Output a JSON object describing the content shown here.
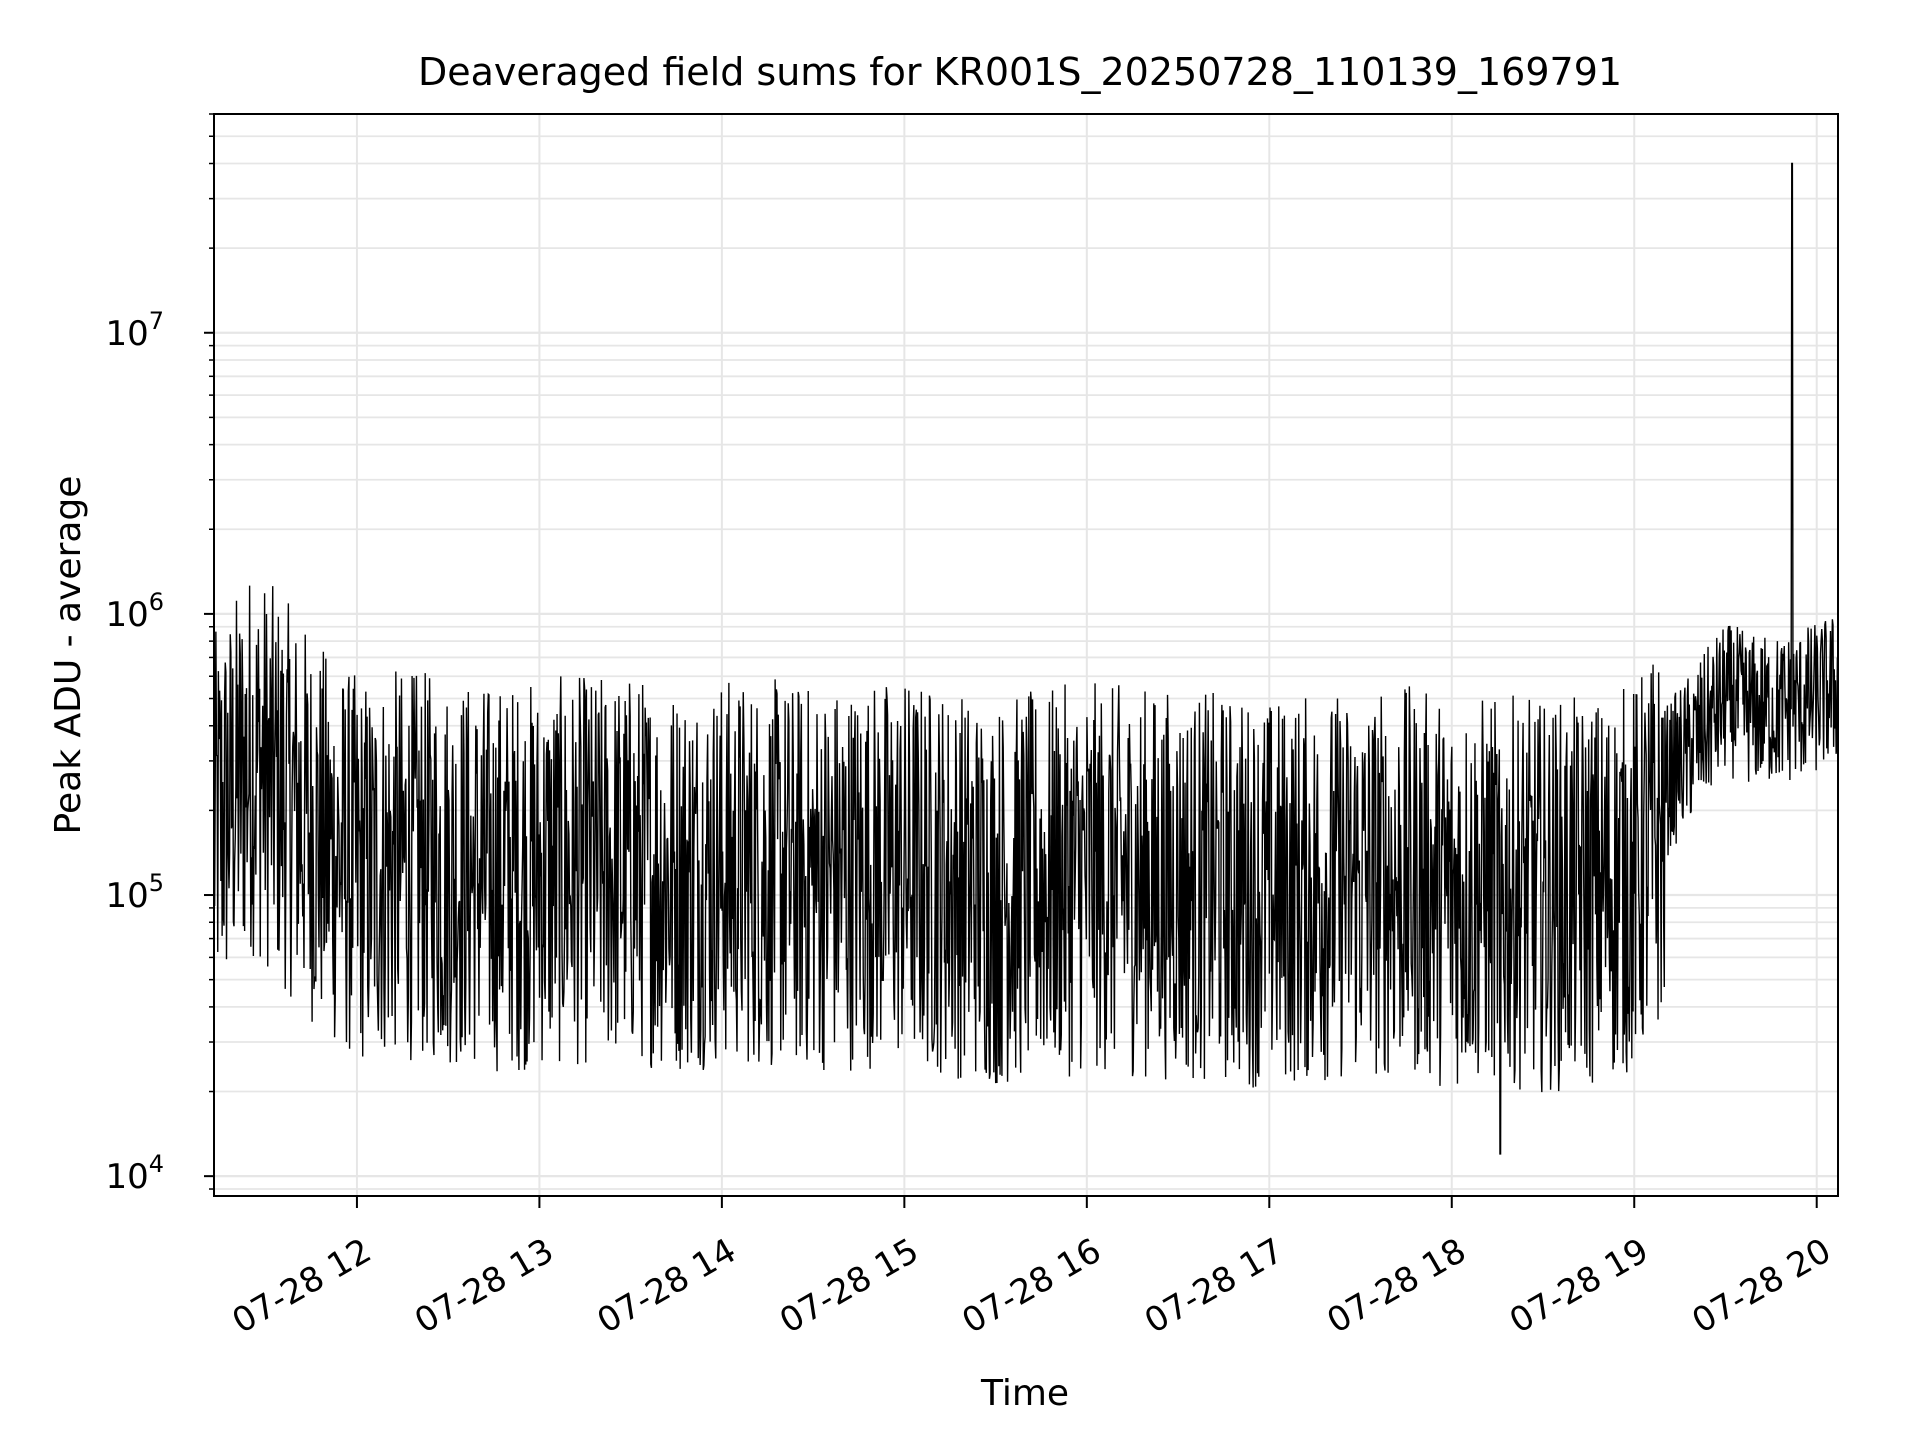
{
  "chart_data": {
    "type": "line",
    "title": "Deaveraged field sums for KR001S_20250728_110139_169791",
    "xlabel": "Time",
    "ylabel": "Peak ADU - average",
    "y_scale": "log",
    "ylim": [
      8500,
      60000000
    ],
    "xlim": [
      "2025-07-28 11:13",
      "2025-07-28 20:07"
    ],
    "grid": true,
    "line_color": "#000000",
    "grid_color": "#e6e6e6",
    "x_ticks": [
      {
        "value": "2025-07-28 12:00",
        "label": "07-28 12"
      },
      {
        "value": "2025-07-28 13:00",
        "label": "07-28 13"
      },
      {
        "value": "2025-07-28 14:00",
        "label": "07-28 14"
      },
      {
        "value": "2025-07-28 15:00",
        "label": "07-28 15"
      },
      {
        "value": "2025-07-28 16:00",
        "label": "07-28 16"
      },
      {
        "value": "2025-07-28 17:00",
        "label": "07-28 17"
      },
      {
        "value": "2025-07-28 18:00",
        "label": "07-28 18"
      },
      {
        "value": "2025-07-28 19:00",
        "label": "07-28 19"
      },
      {
        "value": "2025-07-28 20:00",
        "label": "07-28 20"
      }
    ],
    "y_ticks": [
      {
        "value": 10000,
        "base": "10",
        "exp": "4"
      },
      {
        "value": 100000,
        "base": "10",
        "exp": "5"
      },
      {
        "value": 1000000,
        "base": "10",
        "exp": "6"
      },
      {
        "value": 10000000,
        "base": "10",
        "exp": "7"
      }
    ],
    "series": [
      {
        "x": [
          "2025-07-28 11:13",
          "2025-07-28 11:20",
          "2025-07-28 11:25",
          "2025-07-28 11:30",
          "2025-07-28 11:40",
          "2025-07-28 11:50",
          "2025-07-28 12:00",
          "2025-07-28 12:15",
          "2025-07-28 12:30",
          "2025-07-28 12:45",
          "2025-07-28 13:00",
          "2025-07-28 13:15",
          "2025-07-28 13:30",
          "2025-07-28 13:45",
          "2025-07-28 14:00",
          "2025-07-28 14:15",
          "2025-07-28 14:30",
          "2025-07-28 14:45",
          "2025-07-28 15:00",
          "2025-07-28 15:15",
          "2025-07-28 15:30",
          "2025-07-28 15:45",
          "2025-07-28 16:00",
          "2025-07-28 16:15",
          "2025-07-28 16:30",
          "2025-07-28 16:45",
          "2025-07-28 17:00",
          "2025-07-28 17:15",
          "2025-07-28 17:30",
          "2025-07-28 17:45",
          "2025-07-28 18:00",
          "2025-07-28 18:15",
          "2025-07-28 18:30",
          "2025-07-28 18:45",
          "2025-07-28 19:00",
          "2025-07-28 19:10",
          "2025-07-28 19:20",
          "2025-07-28 19:30",
          "2025-07-28 19:40",
          "2025-07-28 19:50",
          "2025-07-28 20:00",
          "2025-07-28 20:07"
        ],
        "y": [
          250000,
          350000,
          450000,
          400000,
          300000,
          220000,
          180000,
          190000,
          180000,
          170000,
          175000,
          180000,
          185000,
          170000,
          180000,
          175000,
          170000,
          175000,
          180000,
          165000,
          150000,
          160000,
          170000,
          165000,
          160000,
          155000,
          150000,
          155000,
          160000,
          165000,
          150000,
          155000,
          145000,
          150000,
          170000,
          250000,
          350000,
          500000,
          450000,
          460000,
          500000,
          550000
        ]
      }
    ],
    "notable_points": [
      {
        "x": "2025-07-28 19:52",
        "y": 40000000
      },
      {
        "x": "2025-07-28 18:16",
        "y": 12000
      }
    ]
  }
}
